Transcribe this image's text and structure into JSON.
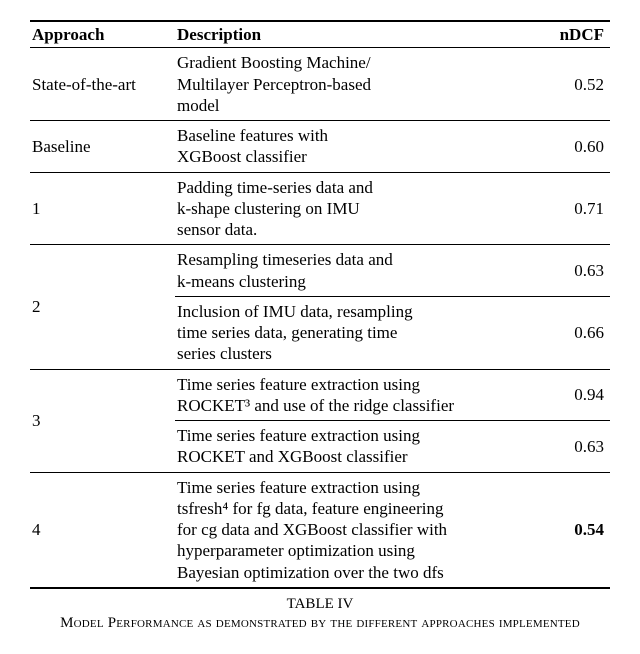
{
  "headers": {
    "approach": "Approach",
    "description": "Description",
    "ndcf": "nDCF"
  },
  "rows": [
    {
      "approach": "State-of-the-art",
      "desc": "Gradient Boosting Machine/\nMultilayer Perceptron-based\nmodel",
      "ndcf": "0.52",
      "section_end": true,
      "bold": false
    },
    {
      "approach": "Baseline",
      "desc": "Baseline features with\nXGBoost classifier",
      "ndcf": "0.60",
      "section_end": true,
      "bold": false
    },
    {
      "approach": "1",
      "desc": "Padding time-series data and\nk-shape clustering on IMU\nsensor data.",
      "ndcf": "0.71",
      "section_end": true,
      "bold": false
    },
    {
      "approach": "2",
      "desc": "Resampling timeseries data and\nk-means clustering",
      "ndcf": "0.63",
      "section_end": true,
      "bold": false,
      "rowspan": 2
    },
    {
      "approach": "",
      "desc": "Inclusion of IMU data, resampling\ntime series data, generating time\nseries clusters",
      "ndcf": "0.66",
      "section_end": true,
      "bold": false,
      "skip_approach": true
    },
    {
      "approach": "3",
      "desc": "Time series feature extraction using\nROCKET³ and use of the ridge classifier",
      "ndcf": "0.94",
      "section_end": true,
      "bold": false,
      "rowspan": 2
    },
    {
      "approach": "",
      "desc": "Time series feature extraction using\nROCKET and XGBoost classifier",
      "ndcf": "0.63",
      "section_end": true,
      "bold": false,
      "skip_approach": true
    },
    {
      "approach": "4",
      "desc": "Time series feature extraction using\ntsfresh⁴ for fg data, feature engineering\nfor cg data and XGBoost classifier with\nhyperparameter optimization using\nBayesian optimization over the two dfs",
      "ndcf": "0.54",
      "section_end": false,
      "last": true,
      "bold": true
    }
  ],
  "caption": {
    "title": "TABLE IV",
    "text": "Model Performance as demonstrated by the different approaches implemented"
  },
  "colors": {
    "background": "#ffffff",
    "text": "#000000",
    "border": "#000000"
  }
}
